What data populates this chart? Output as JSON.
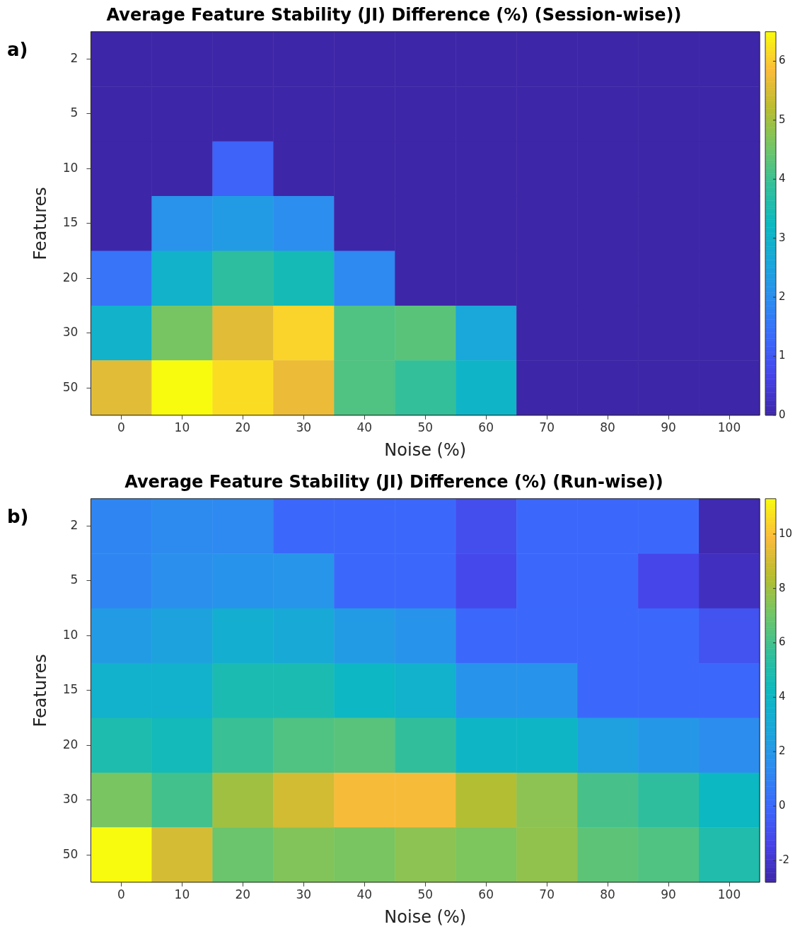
{
  "chart_data": [
    {
      "type": "heatmap",
      "title": "Average Feature Stability (JI) Difference (%) (Session-wise))",
      "xlabel": "Noise (%)",
      "ylabel": "Features",
      "annotations": [
        "a)"
      ],
      "categories": [
        "0",
        "10",
        "20",
        "30",
        "40",
        "50",
        "60",
        "70",
        "80",
        "90",
        "100"
      ],
      "y_categories": [
        "2",
        "5",
        "10",
        "15",
        "20",
        "30",
        "50"
      ],
      "cells": [
        [
          0,
          0,
          0,
          0,
          0,
          0,
          0,
          0,
          0,
          0,
          0
        ],
        [
          0,
          0,
          0,
          0,
          0,
          0,
          0,
          0,
          0,
          0,
          0
        ],
        [
          0,
          0,
          1.2,
          0,
          0,
          0,
          0,
          0,
          0,
          0,
          0
        ],
        [
          0,
          2.1,
          2.3,
          2.0,
          0,
          0,
          0,
          0,
          0,
          0,
          0
        ],
        [
          1.5,
          3.0,
          3.8,
          3.4,
          1.9,
          0,
          0,
          0,
          0,
          0,
          0
        ],
        [
          3.0,
          4.6,
          5.6,
          6.1,
          4.2,
          4.3,
          2.6,
          0,
          0,
          0,
          0
        ],
        [
          5.6,
          6.5,
          6.2,
          5.7,
          4.2,
          3.9,
          3.1,
          0,
          0,
          0,
          0
        ]
      ],
      "clim": [
        0,
        6.5
      ],
      "cticks": [
        0,
        1,
        2,
        3,
        4,
        5,
        6
      ]
    },
    {
      "type": "heatmap",
      "title": "Average Feature Stability (JI) Difference (%) (Run-wise))",
      "xlabel": "Noise (%)",
      "ylabel": "Features",
      "annotations": [
        "b)"
      ],
      "categories": [
        "0",
        "10",
        "20",
        "30",
        "40",
        "50",
        "60",
        "70",
        "80",
        "90",
        "100"
      ],
      "y_categories": [
        "2",
        "5",
        "10",
        "15",
        "20",
        "30",
        "50"
      ],
      "cells": [
        [
          1.2,
          1.4,
          1.3,
          0,
          0,
          0,
          -1,
          0,
          0,
          0,
          -2.6
        ],
        [
          1.2,
          1.6,
          1.8,
          1.9,
          0,
          0,
          -1.2,
          0,
          0,
          -1.3,
          -2.3
        ],
        [
          2.2,
          2.6,
          3.4,
          3.0,
          2.2,
          1.8,
          0,
          0,
          0,
          0,
          -0.8
        ],
        [
          3.6,
          3.6,
          4.8,
          4.8,
          4.1,
          3.6,
          1.8,
          1.8,
          0,
          0,
          0
        ],
        [
          4.9,
          4.5,
          5.8,
          6.3,
          6.5,
          5.6,
          4.0,
          4.0,
          2.5,
          2.0,
          1.5
        ],
        [
          7.2,
          6.0,
          8.0,
          9.0,
          9.8,
          9.8,
          8.4,
          7.6,
          6.1,
          5.5,
          4.2
        ],
        [
          11.3,
          9.1,
          6.9,
          7.4,
          7.2,
          7.6,
          7.3,
          7.7,
          6.6,
          6.3,
          5.0
        ]
      ],
      "clim": [
        -2.8,
        11.3
      ],
      "cticks": [
        -2,
        0,
        2,
        4,
        6,
        8,
        10
      ]
    }
  ]
}
